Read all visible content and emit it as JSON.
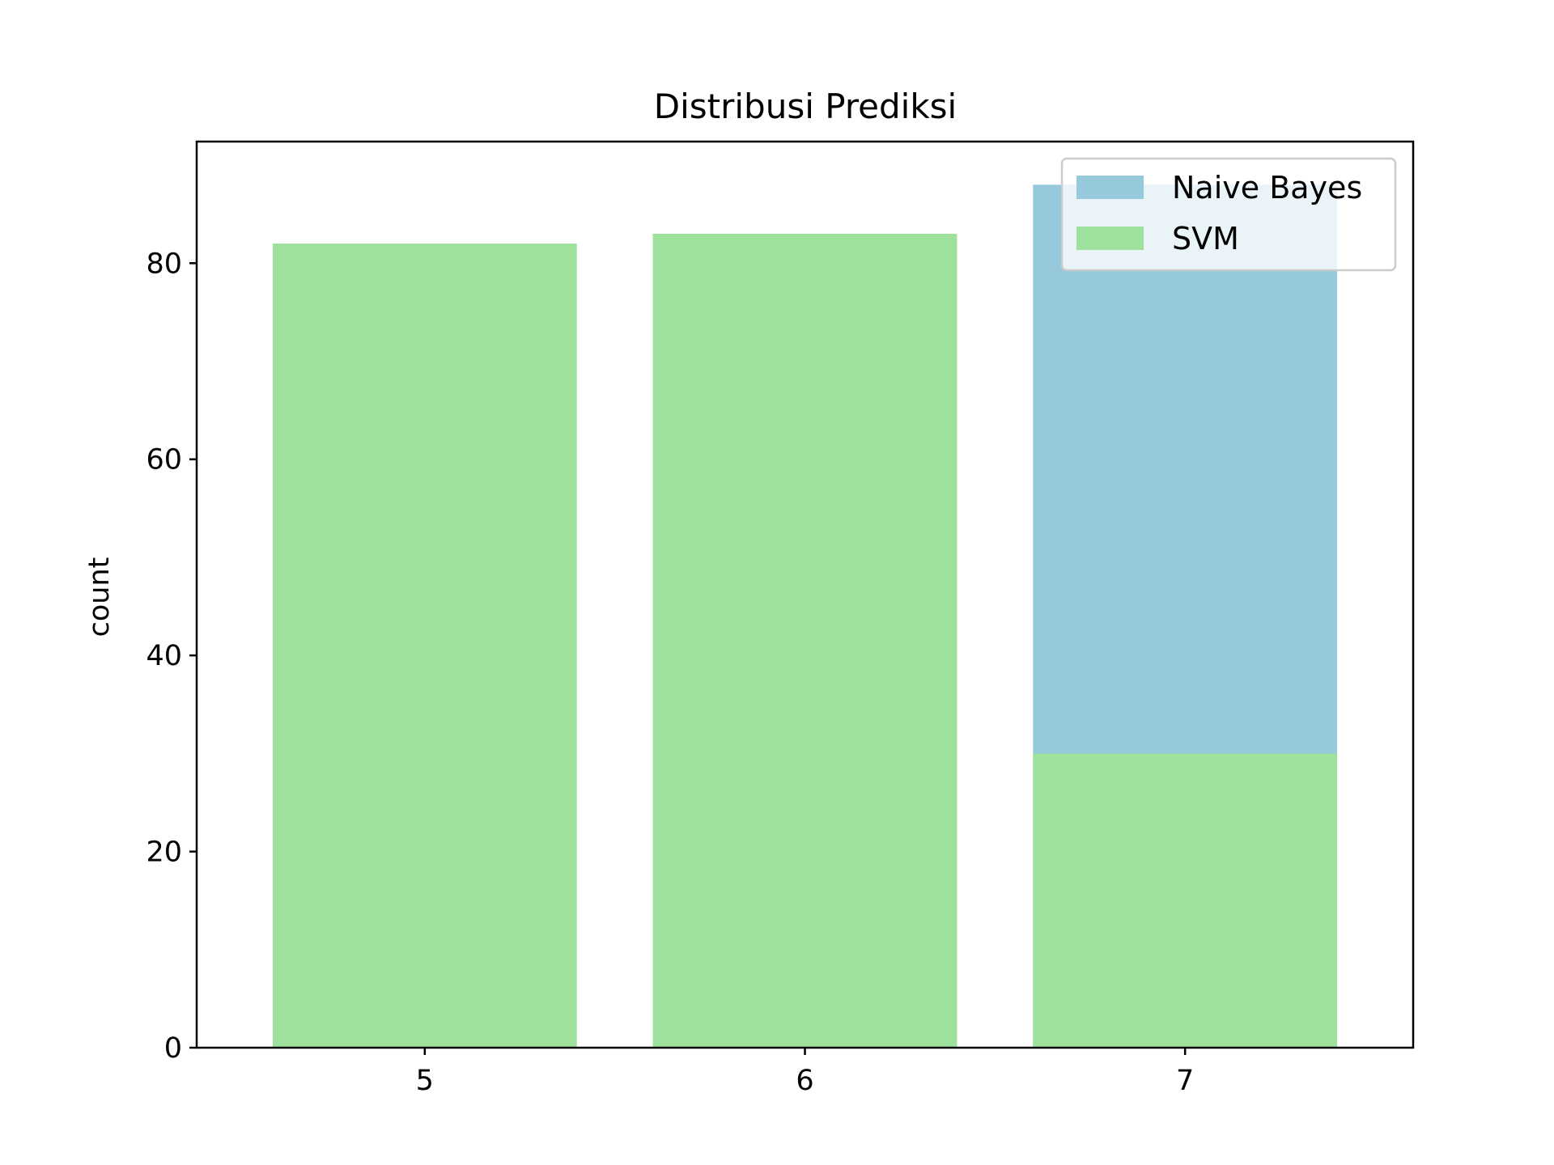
{
  "chart_data": {
    "type": "bar",
    "title": "Distribusi Prediksi",
    "xlabel": "",
    "ylabel": "count",
    "categories": [
      "5",
      "6",
      "7"
    ],
    "ylim": [
      0,
      92.4
    ],
    "yticks": [
      "0",
      "20",
      "40",
      "60",
      "80"
    ],
    "legend_position": "top-right",
    "grid": false,
    "overlay": true,
    "series": [
      {
        "name": "Naive Bayes",
        "values": [
          0,
          0,
          88
        ],
        "color": "#97c9dd"
      },
      {
        "name": "SVM",
        "values": [
          82,
          83,
          30
        ],
        "color": "#9de19d"
      }
    ]
  }
}
